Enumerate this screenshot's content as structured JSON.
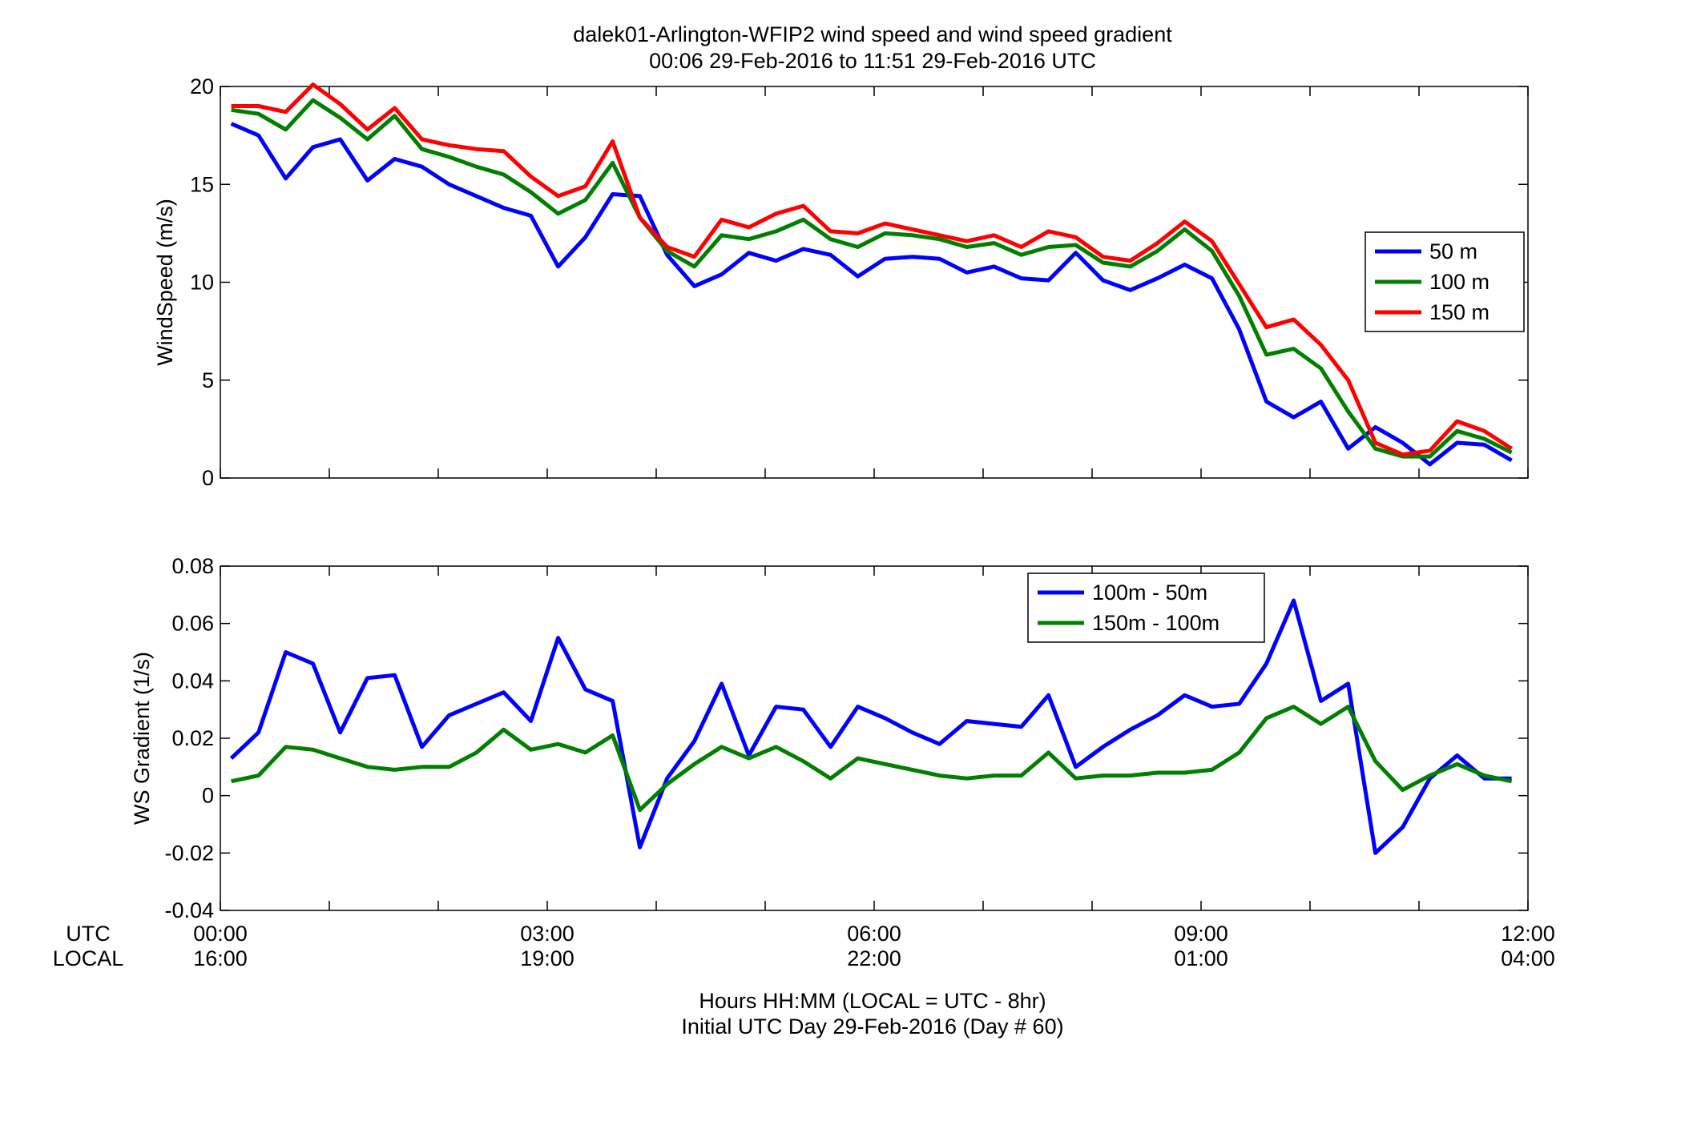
{
  "title_line1": "dalek01-Arlington-WFIP2  wind speed and wind speed gradient",
  "title_line2": "00:06 29-Feb-2016 to 11:51 29-Feb-2016  UTC",
  "row_label_utc": "UTC",
  "row_label_local": "LOCAL",
  "xlabel_line1": "Hours HH:MM  (LOCAL = UTC - 8hr)",
  "xlabel_line2": "Initial UTC Day 29-Feb-2016 (Day # 60)",
  "chart_data": [
    {
      "type": "line",
      "ylabel": "WindSpeed (m/s)",
      "xlim": [
        0,
        12
      ],
      "ylim": [
        0,
        20
      ],
      "yticks": [
        0,
        5,
        10,
        15,
        20
      ],
      "legend_position": "right",
      "x_hours": [
        0.1,
        0.35,
        0.6,
        0.85,
        1.1,
        1.35,
        1.6,
        1.85,
        2.1,
        2.35,
        2.6,
        2.85,
        3.1,
        3.35,
        3.6,
        3.85,
        4.1,
        4.35,
        4.6,
        4.85,
        5.1,
        5.35,
        5.6,
        5.85,
        6.1,
        6.35,
        6.6,
        6.85,
        7.1,
        7.35,
        7.6,
        7.85,
        8.1,
        8.35,
        8.6,
        8.85,
        9.1,
        9.35,
        9.6,
        9.85,
        10.1,
        10.35,
        10.6,
        10.85,
        11.1,
        11.35,
        11.6,
        11.85
      ],
      "series": [
        {
          "name": "50 m",
          "color": "#0000ff",
          "values": [
            18.1,
            17.5,
            15.3,
            16.9,
            17.3,
            15.2,
            16.3,
            15.9,
            15.0,
            14.4,
            13.8,
            13.4,
            10.8,
            12.3,
            14.5,
            14.4,
            11.4,
            9.8,
            10.4,
            11.5,
            11.1,
            11.7,
            11.4,
            10.3,
            11.2,
            11.3,
            11.2,
            10.5,
            10.8,
            10.2,
            10.1,
            11.5,
            10.1,
            9.6,
            10.2,
            10.9,
            10.2,
            7.6,
            3.9,
            3.1,
            3.9,
            1.5,
            2.6,
            1.8,
            0.7,
            1.8,
            1.7,
            0.9
          ]
        },
        {
          "name": "100 m",
          "color": "#007f00",
          "values": [
            18.8,
            18.6,
            17.8,
            19.3,
            18.4,
            17.3,
            18.5,
            16.8,
            16.4,
            15.9,
            15.5,
            14.6,
            13.5,
            14.2,
            16.1,
            13.3,
            11.6,
            10.8,
            12.4,
            12.2,
            12.6,
            13.2,
            12.2,
            11.8,
            12.5,
            12.4,
            12.2,
            11.8,
            12.0,
            11.4,
            11.8,
            11.9,
            11.0,
            10.8,
            11.6,
            12.7,
            11.6,
            9.3,
            6.3,
            6.6,
            5.6,
            3.4,
            1.5,
            1.1,
            1.1,
            2.4,
            2.0,
            1.3
          ]
        },
        {
          "name": "150 m",
          "color": "#ff0000",
          "values": [
            19.0,
            19.0,
            18.7,
            20.1,
            19.1,
            17.8,
            18.9,
            17.3,
            17.0,
            16.8,
            16.7,
            15.4,
            14.4,
            14.9,
            17.2,
            13.3,
            11.8,
            11.3,
            13.2,
            12.8,
            13.5,
            13.9,
            12.6,
            12.5,
            13.0,
            12.7,
            12.4,
            12.1,
            12.4,
            11.8,
            12.6,
            12.3,
            11.3,
            11.1,
            12.0,
            13.1,
            12.1,
            9.9,
            7.7,
            8.1,
            6.8,
            5.0,
            1.8,
            1.2,
            1.4,
            2.9,
            2.4,
            1.5
          ]
        }
      ]
    },
    {
      "type": "line",
      "ylabel": "WS Gradient (1/s)",
      "xlim": [
        0,
        12
      ],
      "ylim": [
        -0.04,
        0.08
      ],
      "yticks": [
        -0.04,
        -0.02,
        0,
        0.02,
        0.04,
        0.06,
        0.08
      ],
      "ytick_labels": [
        "-0.04",
        "-0.02",
        "0",
        "0.02",
        "0.04",
        "0.06",
        "0.08"
      ],
      "xticks": [
        0,
        3,
        6,
        9,
        12
      ],
      "xtick_labels_utc": [
        "00:00",
        "03:00",
        "06:00",
        "09:00",
        "12:00"
      ],
      "xtick_labels_local": [
        "16:00",
        "19:00",
        "22:00",
        "01:00",
        "04:00"
      ],
      "legend_position": "top-right",
      "x_hours": [
        0.1,
        0.35,
        0.6,
        0.85,
        1.1,
        1.35,
        1.6,
        1.85,
        2.1,
        2.35,
        2.6,
        2.85,
        3.1,
        3.35,
        3.6,
        3.85,
        4.1,
        4.35,
        4.6,
        4.85,
        5.1,
        5.35,
        5.6,
        5.85,
        6.1,
        6.35,
        6.6,
        6.85,
        7.1,
        7.35,
        7.6,
        7.85,
        8.1,
        8.35,
        8.6,
        8.85,
        9.1,
        9.35,
        9.6,
        9.85,
        10.1,
        10.35,
        10.6,
        10.85,
        11.1,
        11.35,
        11.6,
        11.85
      ],
      "series": [
        {
          "name": "100m - 50m",
          "color": "#0000ff",
          "values": [
            0.013,
            0.022,
            0.05,
            0.046,
            0.022,
            0.041,
            0.042,
            0.017,
            0.028,
            0.032,
            0.036,
            0.026,
            0.055,
            0.037,
            0.033,
            -0.018,
            0.006,
            0.019,
            0.039,
            0.014,
            0.031,
            0.03,
            0.017,
            0.031,
            0.027,
            0.022,
            0.018,
            0.026,
            0.025,
            0.024,
            0.035,
            0.01,
            0.017,
            0.023,
            0.028,
            0.035,
            0.031,
            0.032,
            0.046,
            0.068,
            0.033,
            0.039,
            -0.02,
            -0.011,
            0.006,
            0.014,
            0.006,
            0.006
          ]
        },
        {
          "name": "150m - 100m",
          "color": "#007f00",
          "values": [
            0.005,
            0.007,
            0.017,
            0.016,
            0.013,
            0.01,
            0.009,
            0.01,
            0.01,
            0.015,
            0.023,
            0.016,
            0.018,
            0.015,
            0.021,
            -0.005,
            0.004,
            0.011,
            0.017,
            0.013,
            0.017,
            0.012,
            0.006,
            0.013,
            0.011,
            0.009,
            0.007,
            0.006,
            0.007,
            0.007,
            0.015,
            0.006,
            0.007,
            0.007,
            0.008,
            0.008,
            0.009,
            0.015,
            0.027,
            0.031,
            0.025,
            0.031,
            0.012,
            0.002,
            0.007,
            0.011,
            0.007,
            0.005
          ]
        }
      ]
    }
  ]
}
